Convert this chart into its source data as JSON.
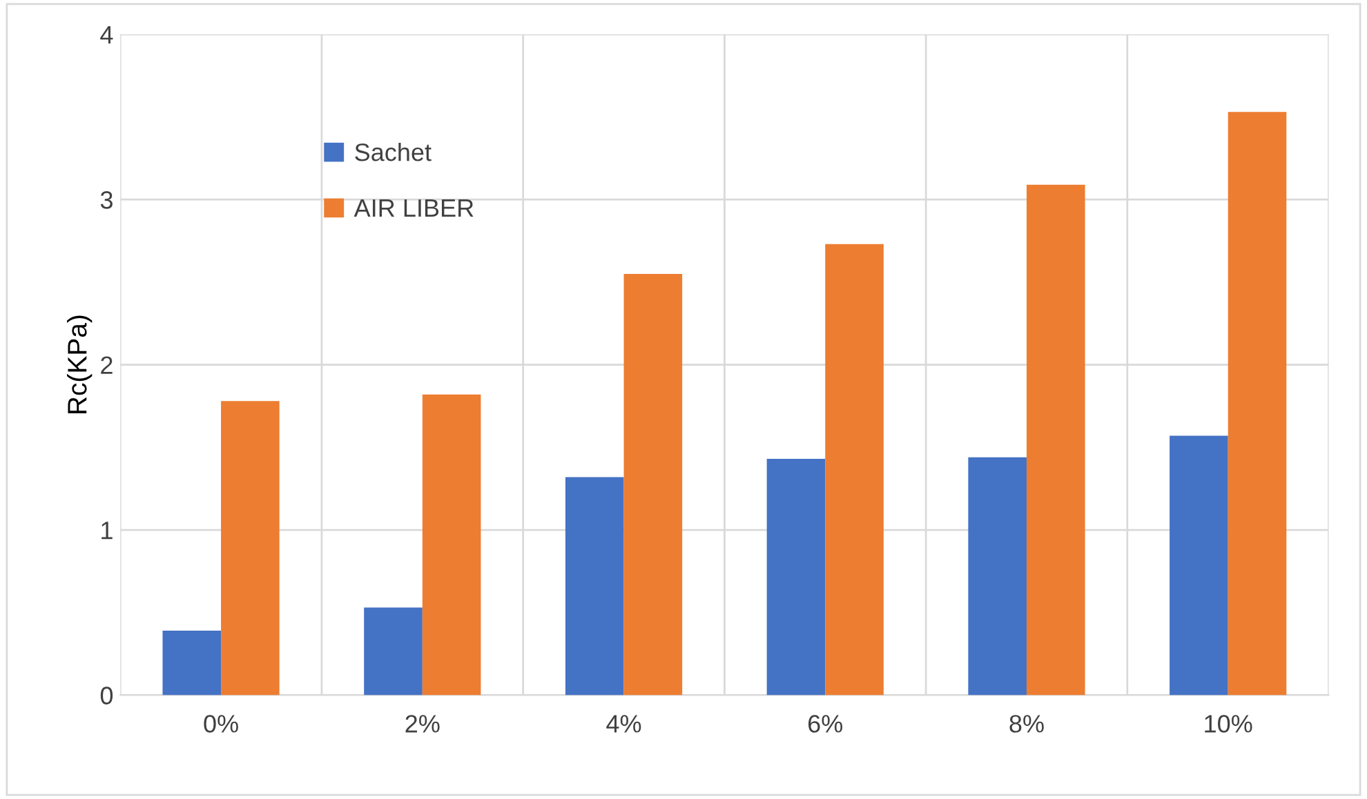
{
  "chart_data": {
    "type": "bar",
    "ylabel": "Rc(KPa)",
    "categories": [
      "0%",
      "2%",
      "4%",
      "6%",
      "8%",
      "10%"
    ],
    "series": [
      {
        "name": "Sachet",
        "color": "#4472c4",
        "values": [
          0.39,
          0.53,
          1.32,
          1.43,
          1.44,
          1.57
        ]
      },
      {
        "name": "AIR LIBER",
        "color": "#ed7d31",
        "values": [
          1.78,
          1.82,
          2.55,
          2.73,
          3.09,
          3.53
        ]
      }
    ],
    "ylim": [
      0,
      4
    ],
    "yticks": [
      0,
      1,
      2,
      3,
      4
    ],
    "grid": true,
    "legend": "top left"
  }
}
